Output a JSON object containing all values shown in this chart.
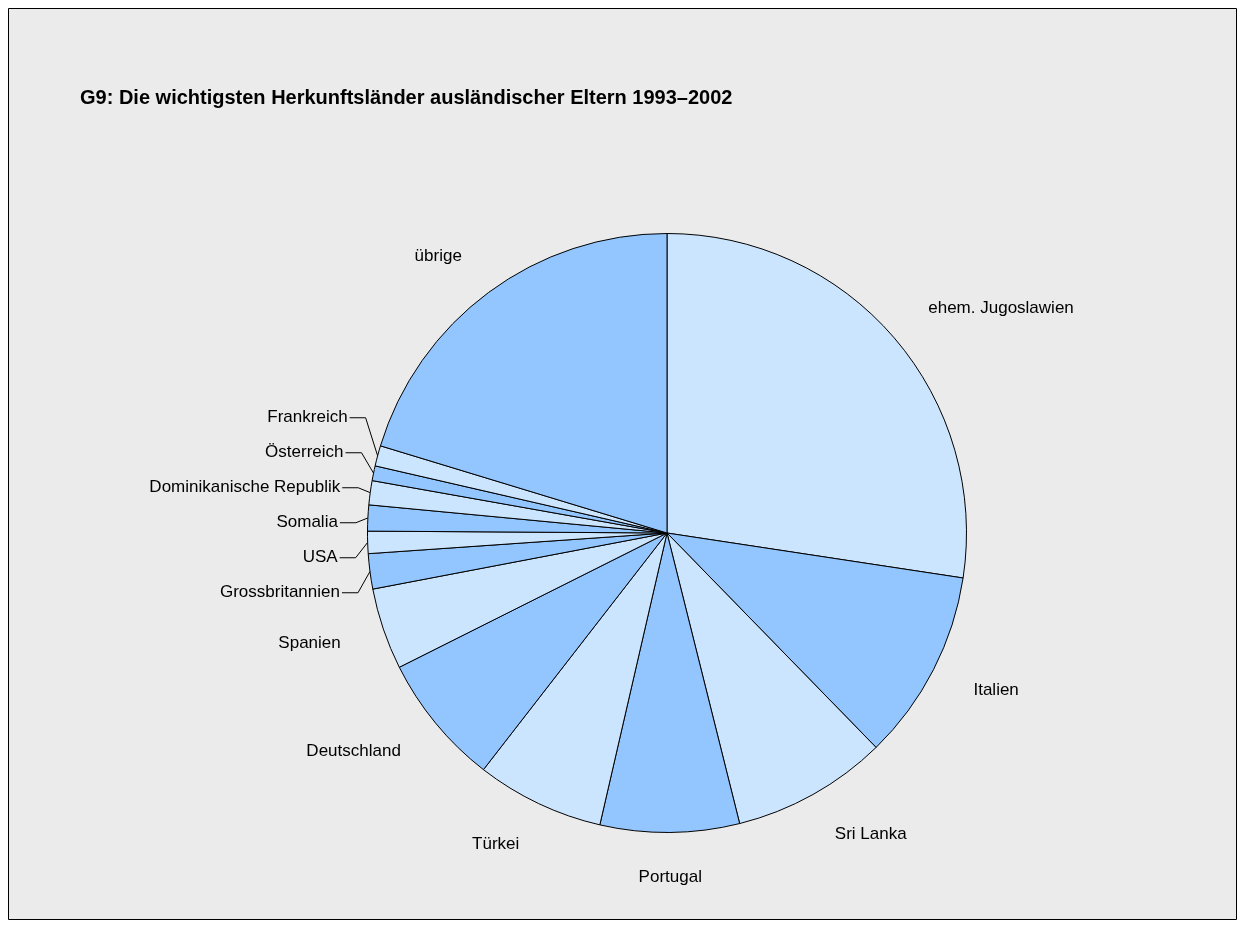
{
  "chart_data": {
    "type": "pie",
    "title": "G9: Die wichtigsten Herkunftsländer ausländischer Eltern 1993–2002",
    "categories": [
      "ehem. Jugoslawien",
      "Italien",
      "Sri Lanka",
      "Portugal",
      "Türkei",
      "Deutschland",
      "Spanien",
      "Grossbritannien",
      "USA",
      "Somalia",
      "Dominikanische Republik",
      "Österreich",
      "Frankreich",
      "übrige"
    ],
    "values": [
      27.4,
      10.3,
      8.4,
      7.5,
      6.9,
      7.1,
      4.4,
      1.9,
      1.2,
      1.4,
      1.3,
      0.8,
      1.1,
      20.3
    ],
    "colors": [
      "#cce5ff",
      "#93c6ff",
      "#cce5ff",
      "#93c6ff",
      "#cce5ff",
      "#93c6ff",
      "#cce5ff",
      "#93c6ff",
      "#cce5ff",
      "#93c6ff",
      "#cce5ff",
      "#93c6ff",
      "#cce5ff",
      "#93c6ff"
    ],
    "legend": false
  }
}
